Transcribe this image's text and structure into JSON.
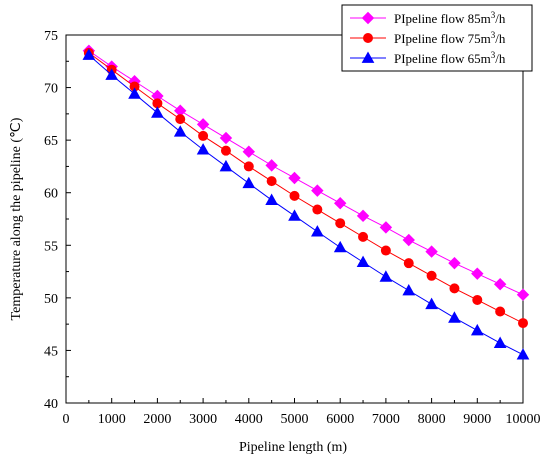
{
  "chart_data": {
    "type": "line",
    "xlabel": "Pipeline length (m)",
    "ylabel": "Temperature along the pipeline (℃)",
    "xlim": [
      0,
      10000
    ],
    "ylim": [
      40,
      75
    ],
    "xticks": [
      "0",
      "1000",
      "2000",
      "3000",
      "4000",
      "5000",
      "6000",
      "7000",
      "8000",
      "9000",
      "10000"
    ],
    "yticks": [
      "40",
      "45",
      "50",
      "55",
      "60",
      "65",
      "70",
      "75"
    ],
    "grid": false,
    "legend_position": "top-right",
    "x": [
      500,
      1000,
      1500,
      2000,
      2500,
      3000,
      3500,
      4000,
      4500,
      5000,
      5500,
      6000,
      6500,
      7000,
      7500,
      8000,
      8500,
      9000,
      9500,
      10000
    ],
    "series": [
      {
        "name": "PIpeline flow 85m³/h",
        "unit_base": "PIpeline flow 85m",
        "unit_sup": "3",
        "unit_tail": "/h",
        "color": "#ff00ff",
        "marker": "diamond",
        "values": [
          73.5,
          72.0,
          70.6,
          69.2,
          67.8,
          66.5,
          65.2,
          63.9,
          62.6,
          61.4,
          60.2,
          59.0,
          57.8,
          56.7,
          55.5,
          54.4,
          53.3,
          52.3,
          51.3,
          50.3
        ]
      },
      {
        "name": "PIpeline flow 75m³/h",
        "unit_base": "PIpeline flow 75m",
        "unit_sup": "3",
        "unit_tail": "/h",
        "color": "#ff0000",
        "marker": "circle",
        "values": [
          73.3,
          71.7,
          70.1,
          68.5,
          67.0,
          65.4,
          64.0,
          62.5,
          61.1,
          59.7,
          58.4,
          57.1,
          55.8,
          54.5,
          53.3,
          52.1,
          50.9,
          49.8,
          48.7,
          47.6
        ]
      },
      {
        "name": "PIpeline flow 65m³/h",
        "unit_base": "PIpeline flow 65m",
        "unit_sup": "3",
        "unit_tail": "/h",
        "color": "#0000ff",
        "marker": "triangle",
        "values": [
          73.1,
          71.2,
          69.4,
          67.6,
          65.8,
          64.1,
          62.5,
          60.9,
          59.3,
          57.8,
          56.3,
          54.8,
          53.4,
          52.0,
          50.7,
          49.4,
          48.1,
          46.9,
          45.7,
          44.6
        ]
      }
    ]
  }
}
